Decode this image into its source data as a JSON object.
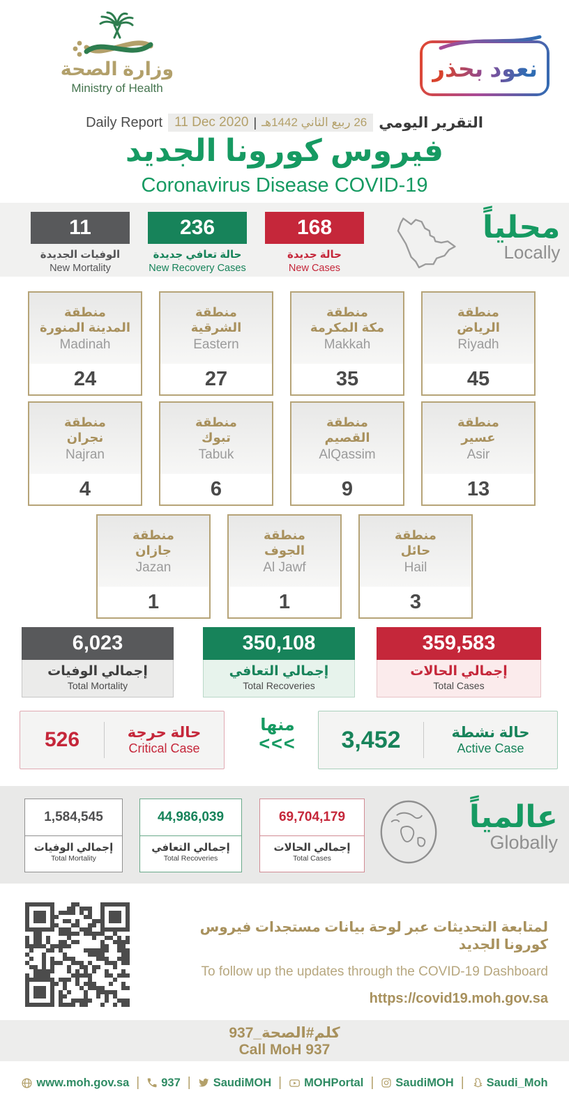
{
  "colors": {
    "green": "#169a62",
    "green_box": "#17835a",
    "red": "#c5273a",
    "gray_box": "#58595b",
    "gold": "#a8915d",
    "band_bg": "#f1f1f0"
  },
  "header": {
    "ministry_ar": "وزارة الصحة",
    "ministry_en": "Ministry of Health",
    "badge": "نعود بحذر",
    "report_en": "Daily Report",
    "date_en": "11 Dec 2020",
    "date_sep": "|",
    "date_ar": "26 ربيع الثاني 1442هـ",
    "report_ar": "التقرير اليومي",
    "title_ar": "فيروس كورونا الجديد",
    "title_en": "Coronavirus Disease COVID-19"
  },
  "local": {
    "label_ar": "محلياً",
    "label_en": "Locally",
    "new_mortality": {
      "value": "11",
      "ar": "الوفيات الجديدة",
      "en": "New Mortality"
    },
    "new_recoveries": {
      "value": "236",
      "ar": "حالة تعافي جديدة",
      "en": "New Recovery Cases"
    },
    "new_cases": {
      "value": "168",
      "ar": "حالة جديدة",
      "en": "New Cases"
    }
  },
  "regions": {
    "row1": [
      {
        "ar": "منطقة\nالمدينة المنورة",
        "en": "Madinah",
        "value": "24"
      },
      {
        "ar": "منطقة\nالشرقية",
        "en": "Eastern",
        "value": "27"
      },
      {
        "ar": "منطقة\nمكة المكرمة",
        "en": "Makkah",
        "value": "35"
      },
      {
        "ar": "منطقة\nالرياض",
        "en": "Riyadh",
        "value": "45"
      }
    ],
    "row2": [
      {
        "ar": "منطقة\nنجران",
        "en": "Najran",
        "value": "4"
      },
      {
        "ar": "منطقة\nتبوك",
        "en": "Tabuk",
        "value": "6"
      },
      {
        "ar": "منطقة\nالقصيم",
        "en": "AlQassim",
        "value": "9"
      },
      {
        "ar": "منطقة\nعسير",
        "en": "Asir",
        "value": "13"
      }
    ],
    "row3": [
      {
        "ar": "منطقة\nجازان",
        "en": "Jazan",
        "value": "1"
      },
      {
        "ar": "منطقة\nالجوف",
        "en": "Al Jawf",
        "value": "1"
      },
      {
        "ar": "منطقة\nحائل",
        "en": "Hail",
        "value": "3"
      }
    ]
  },
  "totals": {
    "mortality": {
      "value": "6,023",
      "ar": "إجمالي الوفيات",
      "en": "Total Mortality"
    },
    "recoveries": {
      "value": "350,108",
      "ar": "إجمالي التعافي",
      "en": "Total Recoveries"
    },
    "cases": {
      "value": "359,583",
      "ar": "إجمالي الحالات",
      "en": "Total Cases"
    }
  },
  "status": {
    "critical": {
      "value": "526",
      "ar": "حالة حرجة",
      "en": "Critical Case"
    },
    "of_which_ar": "منها",
    "arrows": "<<<",
    "active": {
      "value": "3,452",
      "ar": "حالة نشطة",
      "en": "Active Case"
    }
  },
  "global": {
    "label_ar": "عالمياً",
    "label_en": "Globally",
    "mortality": {
      "value": "1,584,545",
      "ar": "إجمالي الوفيات",
      "en": "Total Mortality"
    },
    "recoveries": {
      "value": "44,986,039",
      "ar": "إجمالي التعافي",
      "en": "Total Recoveries"
    },
    "cases": {
      "value": "69,704,179",
      "ar": "إجمالي الحالات",
      "en": "Total Cases"
    }
  },
  "dashboard": {
    "ar": "لمتابعة التحديثات عبر لوحة بيانات مستجدات فيروس كورونا الجديد",
    "en": "To follow up the updates through the COVID-19 Dashboard",
    "url": "https://covid19.moh.gov.sa"
  },
  "call": {
    "ar": "كلم#الصحة_937",
    "en": "Call MoH 937"
  },
  "footer": {
    "separator": "|",
    "items": [
      {
        "icon": "globe-icon",
        "label": "www.moh.gov.sa"
      },
      {
        "icon": "phone-icon",
        "label": "937"
      },
      {
        "icon": "twitter-icon",
        "label": "SaudiMOH"
      },
      {
        "icon": "youtube-icon",
        "label": "MOHPortal"
      },
      {
        "icon": "instagram-icon",
        "label": "SaudiMOH"
      },
      {
        "icon": "snapchat-icon",
        "label": "Saudi_Moh"
      }
    ]
  }
}
